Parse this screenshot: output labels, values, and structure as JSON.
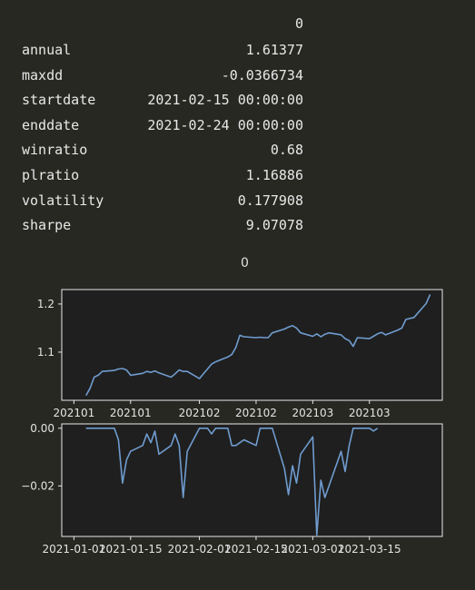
{
  "table": {
    "column_header": "0",
    "rows": [
      {
        "label": "annual",
        "value": "1.61377"
      },
      {
        "label": "maxdd",
        "value": "-0.0366734"
      },
      {
        "label": "startdate",
        "value": "2021-02-15 00:00:00"
      },
      {
        "label": "enddate",
        "value": "2021-02-24 00:00:00"
      },
      {
        "label": "winratio",
        "value": "0.68"
      },
      {
        "label": "plratio",
        "value": "1.16886"
      },
      {
        "label": "volatility",
        "value": "0.177908"
      },
      {
        "label": "sharpe",
        "value": "9.07078"
      }
    ]
  },
  "colors": {
    "background": "#272822",
    "plot_bg": "#1f1f1f",
    "line": "#6f9ccf",
    "axes": "#e8e8e8",
    "text": "#e8e8e8"
  },
  "chart_data": [
    {
      "type": "line",
      "title": "0",
      "xlabel": "",
      "ylabel": "",
      "grid": false,
      "ylim": [
        1.0,
        1.23
      ],
      "yticks": [
        1.1,
        1.2
      ],
      "ytick_labels": [
        "1.1",
        "1.2"
      ],
      "xticks": [
        "2021-01-01",
        "2021-01-15",
        "2021-02-01",
        "2021-02-15",
        "2021-03-01",
        "2021-03-15"
      ],
      "xtick_labels": [
        "202101",
        "202101",
        "202102",
        "202102",
        "202103",
        "202103"
      ],
      "series": [
        {
          "x": [
            "2021-01-04",
            "2021-01-05",
            "2021-01-06",
            "2021-01-07",
            "2021-01-08",
            "2021-01-11",
            "2021-01-12",
            "2021-01-13",
            "2021-01-14",
            "2021-01-15",
            "2021-01-18",
            "2021-01-19",
            "2021-01-20",
            "2021-01-21",
            "2021-01-22",
            "2021-01-25",
            "2021-01-26",
            "2021-01-27",
            "2021-01-28",
            "2021-01-29",
            "2021-02-01",
            "2021-02-02",
            "2021-02-03",
            "2021-02-04",
            "2021-02-05",
            "2021-02-08",
            "2021-02-09",
            "2021-02-10",
            "2021-02-11",
            "2021-02-12",
            "2021-02-15",
            "2021-02-16",
            "2021-02-17",
            "2021-02-18",
            "2021-02-19",
            "2021-02-22",
            "2021-02-23",
            "2021-02-24",
            "2021-02-25",
            "2021-02-26",
            "2021-03-01",
            "2021-03-02",
            "2021-03-03",
            "2021-03-04",
            "2021-03-05",
            "2021-03-08",
            "2021-03-09",
            "2021-03-10",
            "2021-03-11",
            "2021-03-12",
            "2021-03-15",
            "2021-03-16",
            "2021-03-17",
            "2021-03-18",
            "2021-03-19",
            "2021-03-22",
            "2021-03-23",
            "2021-03-24",
            "2021-03-25",
            "2021-03-26",
            "2021-03-29",
            "2021-03-30"
          ],
          "y": [
            1.01,
            1.025,
            1.048,
            1.052,
            1.06,
            1.062,
            1.065,
            1.066,
            1.063,
            1.052,
            1.056,
            1.06,
            1.058,
            1.061,
            1.057,
            1.048,
            1.055,
            1.063,
            1.06,
            1.06,
            1.045,
            1.055,
            1.065,
            1.075,
            1.08,
            1.09,
            1.095,
            1.11,
            1.135,
            1.132,
            1.13,
            1.131,
            1.13,
            1.13,
            1.14,
            1.148,
            1.152,
            1.155,
            1.15,
            1.14,
            1.133,
            1.138,
            1.132,
            1.137,
            1.14,
            1.136,
            1.128,
            1.124,
            1.112,
            1.13,
            1.128,
            1.133,
            1.138,
            1.141,
            1.136,
            1.146,
            1.15,
            1.168,
            1.17,
            1.172,
            1.201,
            1.22
          ]
        }
      ]
    },
    {
      "type": "line",
      "title": "",
      "xlabel": "",
      "ylabel": "",
      "grid": false,
      "ylim": [
        -0.0375,
        0.0015
      ],
      "yticks": [
        0.0,
        -0.02
      ],
      "ytick_labels": [
        "0.00",
        "−0.02"
      ],
      "xticks": [
        "2021-01-01",
        "2021-01-15",
        "2021-02-01",
        "2021-02-15",
        "2021-03-01",
        "2021-03-15"
      ],
      "xtick_labels": [
        "2021-01-01",
        "2021-01-15",
        "2021-02-01",
        "2021-02-15",
        "2021-03-01",
        "2021-03-15"
      ],
      "series": [
        {
          "x": [
            "2021-01-04",
            "2021-01-07",
            "2021-01-11",
            "2021-01-12",
            "2021-01-13",
            "2021-01-14",
            "2021-01-15",
            "2021-01-18",
            "2021-01-19",
            "2021-01-20",
            "2021-01-21",
            "2021-01-22",
            "2021-01-25",
            "2021-01-26",
            "2021-01-27",
            "2021-01-28",
            "2021-01-29",
            "2021-02-01",
            "2021-02-02",
            "2021-02-03",
            "2021-02-04",
            "2021-02-05",
            "2021-02-08",
            "2021-02-09",
            "2021-02-10",
            "2021-02-11",
            "2021-02-12",
            "2021-02-15",
            "2021-02-16",
            "2021-02-17",
            "2021-02-18",
            "2021-02-19",
            "2021-02-22",
            "2021-02-23",
            "2021-02-24",
            "2021-02-25",
            "2021-02-26",
            "2021-03-01",
            "2021-03-02",
            "2021-03-03",
            "2021-03-04",
            "2021-03-05",
            "2021-03-08",
            "2021-03-09",
            "2021-03-10",
            "2021-03-11",
            "2021-03-12",
            "2021-03-15",
            "2021-03-16",
            "2021-03-17"
          ],
          "y": [
            0,
            0,
            0,
            -0.004,
            -0.019,
            -0.011,
            -0.008,
            -0.006,
            -0.002,
            -0.005,
            -0.001,
            -0.009,
            -0.006,
            -0.002,
            -0.006,
            -0.024,
            -0.008,
            0,
            0,
            0,
            -0.002,
            0,
            0,
            -0.006,
            -0.006,
            -0.005,
            -0.004,
            -0.006,
            0,
            0,
            0,
            0,
            -0.014,
            -0.023,
            -0.013,
            -0.019,
            -0.009,
            -0.003,
            -0.037,
            -0.018,
            -0.024,
            -0.02,
            -0.008,
            -0.015,
            -0.006,
            0,
            0,
            0,
            -0.001,
            0
          ]
        }
      ]
    }
  ]
}
